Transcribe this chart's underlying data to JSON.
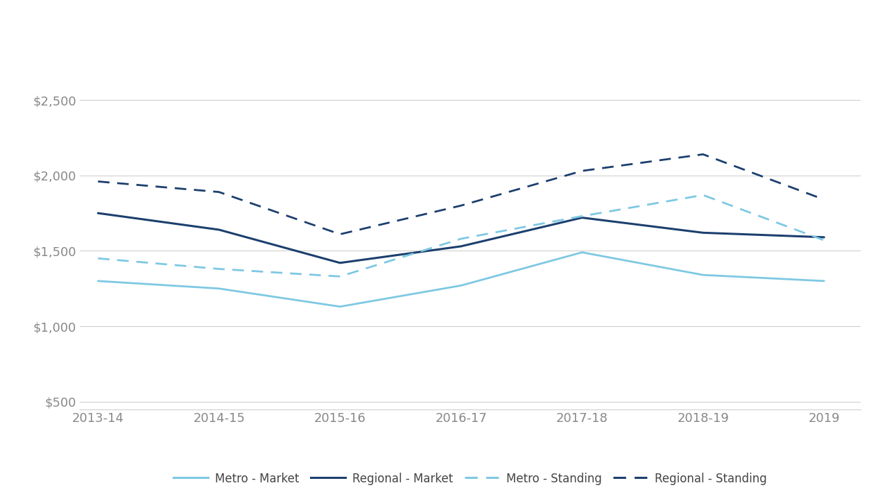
{
  "x_labels": [
    "2013-14",
    "2014-15",
    "2015-16",
    "2016-17",
    "2017-18",
    "2018-19",
    "2019"
  ],
  "x_values": [
    0,
    1,
    2,
    3,
    4,
    5,
    6
  ],
  "series": {
    "Metro - Market": {
      "values": [
        1300,
        1250,
        1130,
        1270,
        1490,
        1340,
        1300
      ],
      "color": "#7ec8e3",
      "linestyle": "solid",
      "linewidth": 2.0
    },
    "Regional - Market": {
      "values": [
        1750,
        1640,
        1420,
        1530,
        1720,
        1620,
        1590
      ],
      "color": "#1c3f6e",
      "linestyle": "solid",
      "linewidth": 2.2
    },
    "Metro - Standing": {
      "values": [
        1450,
        1380,
        1330,
        1580,
        1730,
        1870,
        1570
      ],
      "color": "#7ec8e3",
      "linestyle": "dashed",
      "linewidth": 2.0,
      "dashes": [
        6,
        4
      ]
    },
    "Regional - Standing": {
      "values": [
        1960,
        1890,
        1610,
        1800,
        2030,
        2140,
        1840
      ],
      "color": "#1c3f6e",
      "linestyle": "dashed",
      "linewidth": 2.0,
      "dashes": [
        6,
        4
      ]
    }
  },
  "yticks": [
    500,
    1000,
    1500,
    2000,
    2500
  ],
  "ylim": [
    450,
    2700
  ],
  "xlim": [
    -0.15,
    6.3
  ],
  "background_color": "#ffffff",
  "grid_color": "#d0d0d0",
  "tick_label_color": "#888888",
  "legend_text_color": "#444444",
  "tick_fontsize": 13,
  "legend_fontsize": 12
}
